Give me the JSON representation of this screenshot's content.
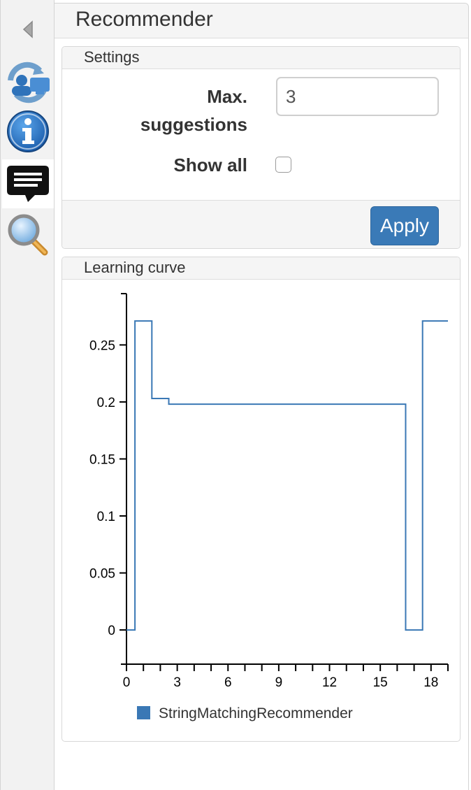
{
  "sidebar": {
    "items": [
      {
        "name": "collapse",
        "icon": "triangle-left-icon"
      },
      {
        "name": "sync",
        "icon": "sync-users-icon"
      },
      {
        "name": "info",
        "icon": "info-icon"
      },
      {
        "name": "recommender",
        "icon": "speech-bubble-icon",
        "active": true
      },
      {
        "name": "search",
        "icon": "magnifier-icon"
      }
    ]
  },
  "header": {
    "title": "Recommender"
  },
  "settings": {
    "title": "Settings",
    "max_label_line1": "Max.",
    "max_label_line2": "suggestions",
    "max_value": "3",
    "show_all_label": "Show all",
    "show_all_checked": false,
    "apply_label": "Apply"
  },
  "learning": {
    "title": "Learning curve"
  },
  "chart_data": {
    "type": "line",
    "step": true,
    "title": "",
    "xlabel": "",
    "ylabel": "",
    "xlim": [
      0,
      19
    ],
    "ylim": [
      -0.03,
      0.295
    ],
    "xticks": [
      0,
      3,
      6,
      9,
      12,
      15,
      18
    ],
    "yticks": [
      0,
      0.05,
      0.1,
      0.15,
      0.2,
      0.25
    ],
    "ytick_labels": [
      "0",
      "0.05",
      "0.1",
      "0.15",
      "0.2",
      "0.25"
    ],
    "series": [
      {
        "name": "StringMatchingRecommender",
        "color": "#3a78b5",
        "x": [
          0,
          1,
          2,
          3,
          4,
          5,
          6,
          7,
          8,
          9,
          10,
          11,
          12,
          13,
          14,
          15,
          16,
          17,
          18,
          19
        ],
        "values": [
          0,
          0.271,
          0.203,
          0.198,
          0.198,
          0.198,
          0.198,
          0.198,
          0.198,
          0.198,
          0.198,
          0.198,
          0.198,
          0.198,
          0.198,
          0.198,
          0.198,
          0,
          0.271,
          0.271
        ]
      }
    ],
    "legend": "bottom"
  }
}
